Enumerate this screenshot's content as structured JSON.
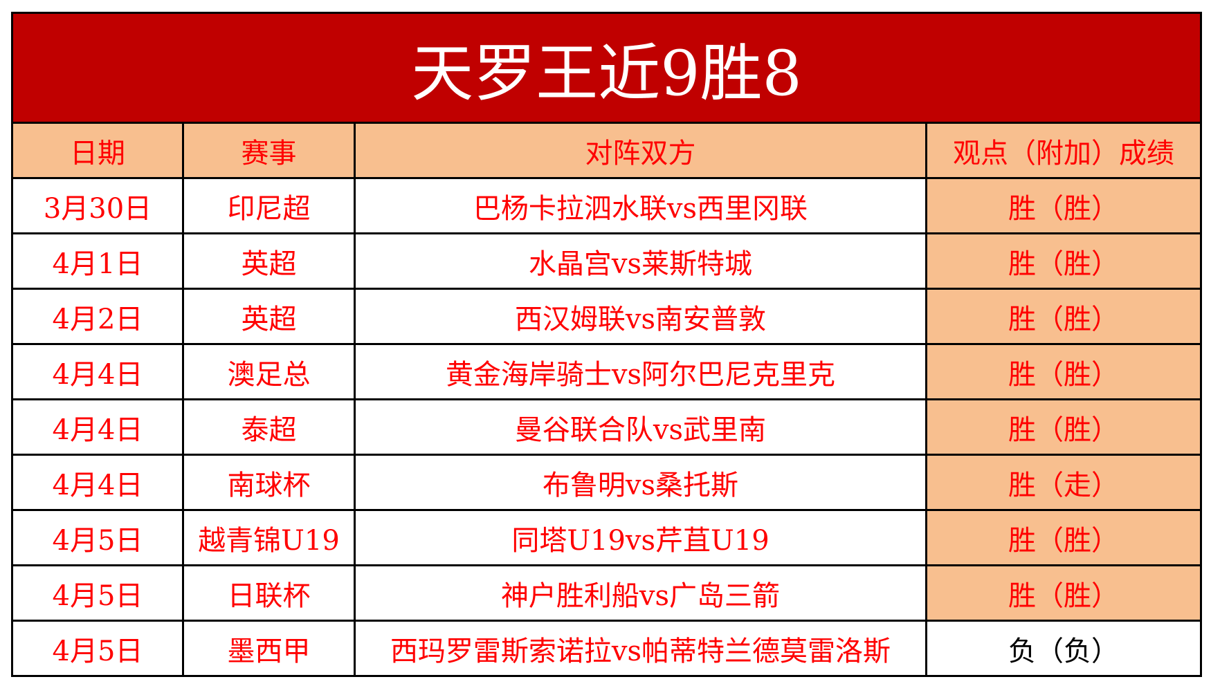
{
  "title": "天罗王近9胜8",
  "colors": {
    "title_bg": "#c00000",
    "header_bg": "#f8bf8f",
    "text_red": "#ff0000",
    "loss_text": "#000000"
  },
  "headers": [
    "日期",
    "赛事",
    "对阵双方",
    "观点（附加）成绩"
  ],
  "rows": [
    {
      "date": "3月30日",
      "league": "印尼超",
      "match": "巴杨卡拉泗水联vs西里冈联",
      "result": "胜（胜）",
      "win": true
    },
    {
      "date": "4月1日",
      "league": "英超",
      "match": "水晶宫vs莱斯特城",
      "result": "胜（胜）",
      "win": true
    },
    {
      "date": "4月2日",
      "league": "英超",
      "match": "西汉姆联vs南安普敦",
      "result": "胜（胜）",
      "win": true
    },
    {
      "date": "4月4日",
      "league": "澳足总",
      "match": "黄金海岸骑士vs阿尔巴尼克里克",
      "result": "胜（胜）",
      "win": true
    },
    {
      "date": "4月4日",
      "league": "泰超",
      "match": "曼谷联合队vs武里南",
      "result": "胜（胜）",
      "win": true
    },
    {
      "date": "4月4日",
      "league": "南球杯",
      "match": "布鲁明vs桑托斯",
      "result": "胜（走）",
      "win": true
    },
    {
      "date": "4月5日",
      "league": "越青锦U19",
      "match": "同塔U19vs芹苴U19",
      "result": "胜（胜）",
      "win": true
    },
    {
      "date": "4月5日",
      "league": "日联杯",
      "match": "神户胜利船vs广岛三箭",
      "result": "胜（胜）",
      "win": true
    },
    {
      "date": "4月5日",
      "league": "墨西甲",
      "match": "西玛罗雷斯索诺拉vs帕蒂特兰德莫雷洛斯",
      "result": "负（负）",
      "win": false
    }
  ]
}
